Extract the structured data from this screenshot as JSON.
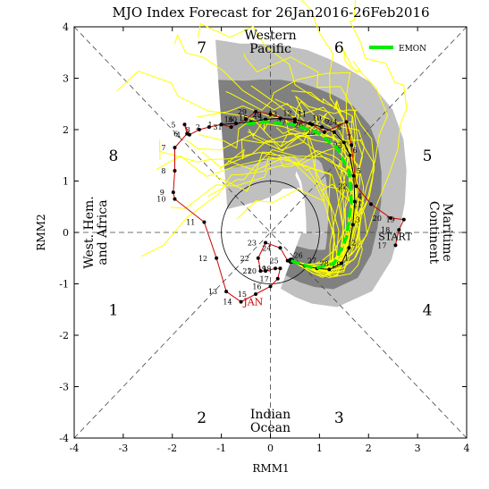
{
  "chart_data": {
    "type": "line",
    "title": "MJO Index Forecast for 26Jan2016-26Feb2016",
    "xlabel": "RMM1",
    "ylabel": "RMM2",
    "xlim": [
      -4,
      4
    ],
    "ylim": [
      -4,
      4
    ],
    "x_ticks": [
      "-4",
      "-3",
      "-2",
      "-1",
      "0",
      "1",
      "2",
      "3",
      "4"
    ],
    "y_ticks": [
      "-4",
      "-3",
      "-2",
      "-1",
      "0",
      "1",
      "2",
      "3",
      "4"
    ],
    "phase_labels": [
      {
        "label": "1",
        "x": -3.2,
        "y": -1.5
      },
      {
        "label": "2",
        "x": -1.4,
        "y": -3.6
      },
      {
        "label": "3",
        "x": 1.4,
        "y": -3.6
      },
      {
        "label": "4",
        "x": 3.2,
        "y": -1.5
      },
      {
        "label": "5",
        "x": 3.2,
        "y": 1.5
      },
      {
        "label": "6",
        "x": 1.4,
        "y": 3.6
      },
      {
        "label": "7",
        "x": -1.4,
        "y": 3.6
      },
      {
        "label": "8",
        "x": -3.2,
        "y": 1.5
      }
    ],
    "region_labels": {
      "top": [
        "Western",
        "Pacific"
      ],
      "bottom": [
        "Indian",
        "Ocean"
      ],
      "left": [
        "West. Hem.",
        "and Africa"
      ],
      "right": [
        "Maritime",
        "Continent"
      ]
    },
    "annotations": {
      "start": "START",
      "month": "JAN"
    },
    "legend": {
      "label": "EMON",
      "color": "#00ee00",
      "placement": "top-right"
    },
    "colors": {
      "observed": "#cc0000",
      "ensemble_members": "#ffff00",
      "ensemble_mean": "#00ee00",
      "spread_90": "#c0c0c0",
      "spread_50": "#808080",
      "forecast_track": "#000000"
    },
    "observed": {
      "name": "JAN",
      "points": [
        {
          "day": "17",
          "x": 2.55,
          "y": -0.25
        },
        {
          "day": "18",
          "x": 2.62,
          "y": 0.05
        },
        {
          "day": "19",
          "x": 2.72,
          "y": 0.25
        },
        {
          "day": "20",
          "x": 2.45,
          "y": 0.28
        },
        {
          "day": "21",
          "x": 2.05,
          "y": 0.55
        },
        {
          "day": "22",
          "x": 1.75,
          "y": 0.9
        },
        {
          "day": "23",
          "x": 1.65,
          "y": 1.7
        },
        {
          "day": "24",
          "x": 1.55,
          "y": 2.15
        },
        {
          "day": "25",
          "x": 1.1,
          "y": 1.95
        },
        {
          "day": "26",
          "x": 0.85,
          "y": 2.1
        },
        {
          "day": "27",
          "x": 0.5,
          "y": 2.15
        },
        {
          "day": "28",
          "x": 0.0,
          "y": 2.3
        },
        {
          "day": "29",
          "x": -0.3,
          "y": 2.35
        },
        {
          "day": "30",
          "x": -0.5,
          "y": 2.2
        },
        {
          "day": "31",
          "x": -0.8,
          "y": 2.05
        },
        {
          "day": "1",
          "x": -1.0,
          "y": 2.1
        },
        {
          "day": "2",
          "x": -1.25,
          "y": 2.05
        },
        {
          "day": "3",
          "x": -1.45,
          "y": 2.0
        },
        {
          "day": "4",
          "x": -1.65,
          "y": 1.9
        },
        {
          "day": "5",
          "x": -1.75,
          "y": 2.1
        },
        {
          "day": "6",
          "x": -1.7,
          "y": 1.92
        },
        {
          "day": "7",
          "x": -1.95,
          "y": 1.65
        },
        {
          "day": "8",
          "x": -1.95,
          "y": 1.2
        },
        {
          "day": "9",
          "x": -1.98,
          "y": 0.78
        },
        {
          "day": "10",
          "x": -1.95,
          "y": 0.65
        },
        {
          "day": "11",
          "x": -1.35,
          "y": 0.2
        },
        {
          "day": "12",
          "x": -1.1,
          "y": -0.5
        },
        {
          "day": "13",
          "x": -0.9,
          "y": -1.15
        },
        {
          "day": "14",
          "x": -0.6,
          "y": -1.35
        },
        {
          "day": "15",
          "x": -0.3,
          "y": -1.2
        },
        {
          "day": "16",
          "x": 0.0,
          "y": -1.05
        },
        {
          "day": "17",
          "x": 0.15,
          "y": -0.9
        },
        {
          "day": "18",
          "x": 0.2,
          "y": -0.7
        },
        {
          "day": "19",
          "x": 0.1,
          "y": -0.7
        },
        {
          "day": "20",
          "x": -0.1,
          "y": -0.75
        },
        {
          "day": "21",
          "x": -0.2,
          "y": -0.75
        },
        {
          "day": "22",
          "x": -0.25,
          "y": -0.5
        },
        {
          "day": "23",
          "x": -0.1,
          "y": -0.2
        },
        {
          "day": "24",
          "x": 0.2,
          "y": -0.3
        },
        {
          "day": "25",
          "x": 0.35,
          "y": -0.55
        }
      ]
    },
    "forecast_track": {
      "points": [
        {
          "day": "26",
          "x": 0.42,
          "y": -0.55
        },
        {
          "day": "27",
          "x": 0.7,
          "y": -0.65
        },
        {
          "day": "28",
          "x": 0.95,
          "y": -0.7
        },
        {
          "day": "29",
          "x": 1.2,
          "y": -0.72
        },
        {
          "day": "1",
          "x": 1.45,
          "y": -0.6
        },
        {
          "day": "2",
          "x": 1.6,
          "y": -0.3
        },
        {
          "day": "3",
          "x": 1.68,
          "y": 0.15
        },
        {
          "day": "4",
          "x": 1.72,
          "y": 0.6
        },
        {
          "day": "5",
          "x": 1.7,
          "y": 1.1
        },
        {
          "day": "6",
          "x": 1.62,
          "y": 1.5
        },
        {
          "day": "7",
          "x": 1.5,
          "y": 1.75
        },
        {
          "day": "8",
          "x": 1.3,
          "y": 1.95
        },
        {
          "day": "9",
          "x": 1.05,
          "y": 2.05
        },
        {
          "day": "10",
          "x": 0.8,
          "y": 2.12
        },
        {
          "day": "11",
          "x": 0.5,
          "y": 2.2
        },
        {
          "day": "12",
          "x": 0.2,
          "y": 2.22
        },
        {
          "day": "13",
          "x": -0.1,
          "y": 2.2
        },
        {
          "day": "14",
          "x": -0.4,
          "y": 2.15
        },
        {
          "day": "15",
          "x": -0.7,
          "y": 2.12
        },
        {
          "day": "16",
          "x": -1.0,
          "y": 2.1
        }
      ]
    },
    "ensemble_mean": {
      "name": "EMON",
      "points": [
        {
          "x": 0.42,
          "y": -0.55
        },
        {
          "x": 0.9,
          "y": -0.7
        },
        {
          "x": 1.3,
          "y": -0.6
        },
        {
          "x": 1.55,
          "y": -0.1
        },
        {
          "x": 1.65,
          "y": 0.6
        },
        {
          "x": 1.6,
          "y": 1.2
        },
        {
          "x": 1.35,
          "y": 1.65
        },
        {
          "x": 0.95,
          "y": 1.95
        },
        {
          "x": 0.45,
          "y": 2.1
        },
        {
          "x": -0.1,
          "y": 2.15
        },
        {
          "x": -0.6,
          "y": 2.1
        }
      ]
    }
  }
}
